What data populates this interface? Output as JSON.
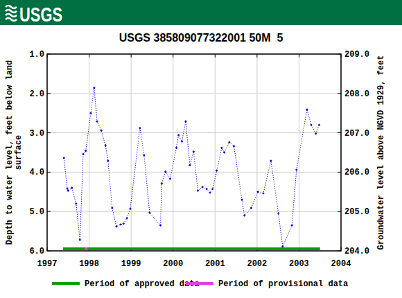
{
  "header": {
    "logo": "USGS"
  },
  "chart_data": {
    "type": "line",
    "title": "USGS 385809077322001 50M  5",
    "y_label": [
      "Depth to water level, feet below land",
      "surface"
    ],
    "y2_label": "Groundwater level above NGVD 1929, feet",
    "xlim": [
      1997,
      2004
    ],
    "xticks": [
      1997,
      1998,
      1999,
      2000,
      2001,
      2002,
      2003,
      2004
    ],
    "ylim": [
      6.0,
      1.0
    ],
    "yticks": [
      {
        "value": 1,
        "label": "1.0"
      },
      {
        "value": 2,
        "label": "2.0"
      },
      {
        "value": 3,
        "label": "3.0"
      },
      {
        "value": 4,
        "label": "4.0"
      },
      {
        "value": 5,
        "label": "5.0"
      },
      {
        "value": 6,
        "label": "6.0"
      }
    ],
    "y2lim": [
      204.0,
      209.0
    ],
    "y2ticks": [
      {
        "value": 204,
        "label": "204.0"
      },
      {
        "value": 205,
        "label": "205.0"
      },
      {
        "value": 206,
        "label": "206.0"
      },
      {
        "value": 207,
        "label": "207.0"
      },
      {
        "value": 208,
        "label": "208.0"
      },
      {
        "value": 209,
        "label": "209.0"
      }
    ],
    "grid": true,
    "legend": "bottom",
    "series": [
      {
        "color": "#0000cc",
        "line_style": "dotted",
        "marker": "diamond",
        "x": [
          1997.4,
          1997.48,
          1997.5,
          1997.59,
          1997.69,
          1997.78,
          1997.86,
          1997.92,
          1998.04,
          1998.12,
          1998.19,
          1998.29,
          1998.39,
          1998.45,
          1998.55,
          1998.65,
          1998.75,
          1998.82,
          1998.9,
          1998.98,
          1999.21,
          1999.31,
          1999.44,
          1999.7,
          1999.73,
          1999.82,
          1999.93,
          2000.08,
          2000.13,
          2000.21,
          2000.3,
          2000.4,
          2000.49,
          2000.59,
          2000.7,
          2000.8,
          2000.88,
          2000.94,
          2001.04,
          2001.16,
          2001.22,
          2001.34,
          2001.45,
          2001.64,
          2001.7,
          2001.86,
          2002.02,
          2002.15,
          2002.33,
          2002.51,
          2002.61,
          2002.83,
          2002.94,
          2003.19,
          2003.29,
          2003.4,
          2003.48
        ],
        "values": [
          3.64,
          4.42,
          4.47,
          4.4,
          4.8,
          5.72,
          3.54,
          3.46,
          2.5,
          1.86,
          2.71,
          2.94,
          3.32,
          3.71,
          4.91,
          5.38,
          5.33,
          5.31,
          5.17,
          4.93,
          2.88,
          3.57,
          5.03,
          5.35,
          4.29,
          3.99,
          4.17,
          3.38,
          3.06,
          3.22,
          2.71,
          3.82,
          3.48,
          4.47,
          4.38,
          4.43,
          4.52,
          4.43,
          3.96,
          3.38,
          3.5,
          3.24,
          3.34,
          4.7,
          5.1,
          4.91,
          4.5,
          4.54,
          3.71,
          5.05,
          5.89,
          5.35,
          3.94,
          2.41,
          2.8,
          3.02,
          2.8
        ]
      }
    ],
    "periods": [
      {
        "name": "Period of approved data",
        "color": "#00a000",
        "ranges": [
          [
            1997.38,
            2003.5
          ]
        ]
      },
      {
        "name": "Period of provisional data",
        "color": "#e040e0",
        "ranges": [
          [
            1997.9,
            1997.96
          ]
        ]
      }
    ]
  }
}
